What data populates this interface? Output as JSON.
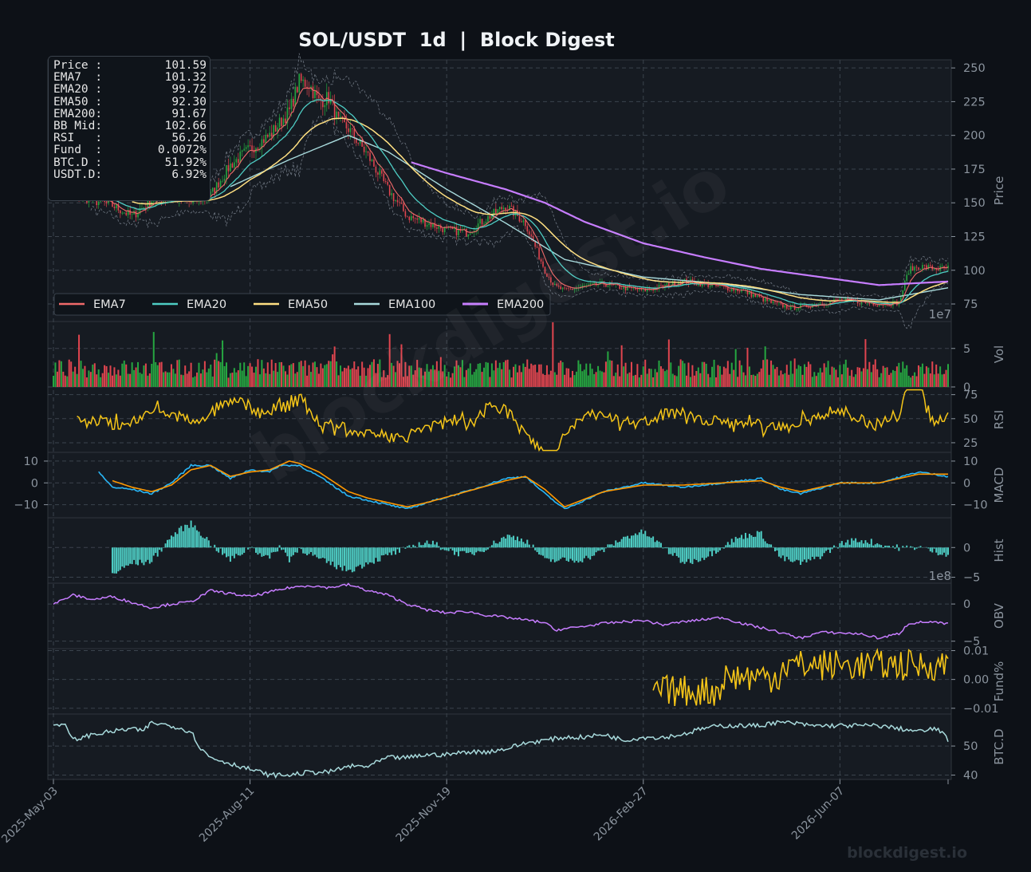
{
  "title": "SOL/USDT  1d  |  Block Digest",
  "footer": "blockdigest.io",
  "watermark": "blockdigest.io",
  "info_box": [
    {
      "label": "Price :",
      "value": "101.59"
    },
    {
      "label": "EMA7  :",
      "value": "101.32"
    },
    {
      "label": "EMA20 :",
      "value": "99.72"
    },
    {
      "label": "EMA50 :",
      "value": "92.30"
    },
    {
      "label": "EMA200:",
      "value": "91.67"
    },
    {
      "label": "BB Mid:",
      "value": "102.66"
    },
    {
      "label": "RSI   :",
      "value": "56.26"
    },
    {
      "label": "Fund  :",
      "value": "0.0072%"
    },
    {
      "label": "BTC.D :",
      "value": "51.92%"
    },
    {
      "label": "USDT.D:",
      "value": "6.92%"
    }
  ],
  "chart_data": {
    "type": "line",
    "x_ticks": [
      "2025-May-03",
      "2025-Aug-11",
      "2025-Nov-19",
      "2026-Feb-27",
      "2026-Jun-07"
    ],
    "n_days": 456,
    "colors": {
      "up": "#26a641",
      "down": "#e0454f",
      "ema7": "#f06a6a",
      "ema20": "#4ecdc4",
      "ema50": "#ffe082",
      "ema100": "#a8dadc",
      "ema200": "#c77dff",
      "rsi": "#f5c518",
      "macd": "#29b6f6",
      "signal": "#ff9800",
      "hist": "#4ecdc4",
      "obv": "#c77dff",
      "fund": "#f5c518",
      "btcd": "#a8dadc"
    },
    "panels": [
      {
        "name": "price",
        "ylabel": "Price",
        "ylim": [
          62,
          256
        ],
        "yticks": [
          "75",
          "100",
          "125",
          "150",
          "175",
          "200",
          "225",
          "250"
        ],
        "offset_label": "1e7",
        "legend": [
          "EMA7",
          "EMA20",
          "EMA50",
          "EMA100",
          "EMA200"
        ],
        "close_path": [
          [
            0,
            160
          ],
          [
            10,
            157
          ],
          [
            20,
            152
          ],
          [
            30,
            148
          ],
          [
            40,
            140
          ],
          [
            50,
            152
          ],
          [
            60,
            155
          ],
          [
            70,
            150
          ],
          [
            80,
            156
          ],
          [
            90,
            178
          ],
          [
            100,
            190
          ],
          [
            110,
            200
          ],
          [
            120,
            218
          ],
          [
            125,
            240
          ],
          [
            130,
            238
          ],
          [
            135,
            225
          ],
          [
            140,
            228
          ],
          [
            145,
            210
          ],
          [
            150,
            205
          ],
          [
            155,
            195
          ],
          [
            160,
            185
          ],
          [
            170,
            160
          ],
          [
            180,
            140
          ],
          [
            190,
            135
          ],
          [
            200,
            130
          ],
          [
            210,
            128
          ],
          [
            220,
            138
          ],
          [
            230,
            148
          ],
          [
            240,
            135
          ],
          [
            250,
            100
          ],
          [
            255,
            88
          ],
          [
            260,
            85
          ],
          [
            270,
            88
          ],
          [
            280,
            90
          ],
          [
            290,
            87
          ],
          [
            300,
            85
          ],
          [
            310,
            88
          ],
          [
            320,
            92
          ],
          [
            330,
            90
          ],
          [
            350,
            85
          ],
          [
            365,
            76
          ],
          [
            375,
            72
          ],
          [
            385,
            74
          ],
          [
            400,
            78
          ],
          [
            420,
            75
          ],
          [
            430,
            76
          ],
          [
            435,
            100
          ],
          [
            440,
            103
          ],
          [
            450,
            101
          ],
          [
            455,
            101.59
          ]
        ],
        "ema200_path": [
          [
            182,
            180
          ],
          [
            200,
            172
          ],
          [
            230,
            160
          ],
          [
            250,
            150
          ],
          [
            270,
            136
          ],
          [
            300,
            120
          ],
          [
            330,
            110
          ],
          [
            360,
            101
          ],
          [
            390,
            95
          ],
          [
            420,
            89
          ],
          [
            455,
            91.67
          ]
        ],
        "ema100_path": [
          [
            90,
            162
          ],
          [
            120,
            182
          ],
          [
            150,
            200
          ],
          [
            170,
            188
          ],
          [
            200,
            160
          ],
          [
            230,
            135
          ],
          [
            260,
            108
          ],
          [
            300,
            95
          ],
          [
            340,
            90
          ],
          [
            380,
            82
          ],
          [
            420,
            78
          ],
          [
            455,
            87
          ]
        ]
      },
      {
        "name": "volume",
        "ylabel": "Vol",
        "ylim": [
          0,
          8.5
        ],
        "yticks": [
          "0",
          "5"
        ]
      },
      {
        "name": "rsi",
        "ylabel": "RSI",
        "ylim": [
          15,
          83
        ],
        "yticks": [
          "25",
          "50",
          "75"
        ],
        "last": 56.26
      },
      {
        "name": "macd",
        "ylabel": "MACD",
        "ylim": [
          -16,
          14
        ],
        "yticks": [
          "−10",
          "0",
          "10"
        ],
        "left_ticks": [
          "10",
          "0",
          "−10"
        ],
        "macd_path": [
          [
            23,
            5
          ],
          [
            30,
            -2
          ],
          [
            40,
            -3
          ],
          [
            50,
            -5
          ],
          [
            60,
            0
          ],
          [
            70,
            8
          ],
          [
            80,
            8
          ],
          [
            90,
            2
          ],
          [
            100,
            6
          ],
          [
            110,
            5
          ],
          [
            115,
            8
          ],
          [
            125,
            8
          ],
          [
            135,
            3
          ],
          [
            150,
            -6
          ],
          [
            160,
            -8
          ],
          [
            180,
            -12
          ],
          [
            190,
            -9
          ],
          [
            210,
            -4
          ],
          [
            230,
            2
          ],
          [
            240,
            3
          ],
          [
            250,
            -5
          ],
          [
            260,
            -12
          ],
          [
            280,
            -4
          ],
          [
            300,
            0
          ],
          [
            320,
            -2
          ],
          [
            340,
            0
          ],
          [
            360,
            2
          ],
          [
            370,
            -3
          ],
          [
            380,
            -5
          ],
          [
            400,
            0
          ],
          [
            420,
            0
          ],
          [
            440,
            5
          ],
          [
            455,
            3
          ]
        ],
        "signal_path": [
          [
            30,
            1
          ],
          [
            40,
            -2
          ],
          [
            50,
            -4
          ],
          [
            60,
            -1
          ],
          [
            70,
            6
          ],
          [
            80,
            8
          ],
          [
            90,
            3
          ],
          [
            100,
            5
          ],
          [
            110,
            6
          ],
          [
            120,
            10
          ],
          [
            125,
            9
          ],
          [
            135,
            5
          ],
          [
            150,
            -4
          ],
          [
            160,
            -7
          ],
          [
            180,
            -11
          ],
          [
            190,
            -9
          ],
          [
            210,
            -4
          ],
          [
            230,
            1
          ],
          [
            240,
            3
          ],
          [
            250,
            -3
          ],
          [
            260,
            -11
          ],
          [
            280,
            -4
          ],
          [
            300,
            -1
          ],
          [
            320,
            -1
          ],
          [
            340,
            0
          ],
          [
            360,
            1
          ],
          [
            370,
            -2
          ],
          [
            380,
            -4
          ],
          [
            400,
            0
          ],
          [
            420,
            0
          ],
          [
            440,
            4
          ],
          [
            455,
            4
          ]
        ]
      },
      {
        "name": "hist",
        "ylabel": "Hist",
        "ylim": [
          -6,
          5
        ],
        "yticks": [
          "−5",
          "0"
        ],
        "offset_label": "1e8"
      },
      {
        "name": "obv",
        "ylabel": "OBV",
        "ylim": [
          -6,
          2.8
        ],
        "yticks": [
          "−5",
          "0"
        ],
        "obv_path": [
          [
            0,
            0
          ],
          [
            10,
            1.2
          ],
          [
            20,
            0.6
          ],
          [
            30,
            1.0
          ],
          [
            40,
            0.2
          ],
          [
            50,
            -0.5
          ],
          [
            60,
            0
          ],
          [
            70,
            0.3
          ],
          [
            80,
            1.8
          ],
          [
            90,
            1.4
          ],
          [
            100,
            1.0
          ],
          [
            110,
            1.6
          ],
          [
            120,
            2.2
          ],
          [
            130,
            2.5
          ],
          [
            140,
            2.2
          ],
          [
            150,
            2.6
          ],
          [
            160,
            1.8
          ],
          [
            170,
            1.2
          ],
          [
            180,
            0
          ],
          [
            190,
            -0.8
          ],
          [
            200,
            -1.2
          ],
          [
            210,
            -1.0
          ],
          [
            220,
            -1.5
          ],
          [
            230,
            -1.8
          ],
          [
            250,
            -2.5
          ],
          [
            255,
            -3.5
          ],
          [
            270,
            -3.0
          ],
          [
            280,
            -2.6
          ],
          [
            300,
            -2.2
          ],
          [
            310,
            -2.8
          ],
          [
            320,
            -2.4
          ],
          [
            340,
            -1.8
          ],
          [
            350,
            -2.6
          ],
          [
            365,
            -3.5
          ],
          [
            380,
            -4.6
          ],
          [
            390,
            -3.8
          ],
          [
            410,
            -4.0
          ],
          [
            420,
            -4.6
          ],
          [
            430,
            -4.0
          ],
          [
            435,
            -2.6
          ],
          [
            445,
            -2.4
          ],
          [
            455,
            -2.7
          ]
        ]
      },
      {
        "name": "fund",
        "ylabel": "Fund%",
        "ylim": [
          -0.012,
          0.0107
        ],
        "yticks": [
          "−0.01",
          "0.00",
          "0.01"
        ],
        "start_index": 305,
        "last": 0.0072
      },
      {
        "name": "btcd",
        "ylabel": "BTC.D",
        "ylim": [
          38.5,
          61
        ],
        "yticks": [
          "40",
          "50"
        ],
        "btcd_path": [
          [
            0,
            57
          ],
          [
            5,
            58
          ],
          [
            10,
            52
          ],
          [
            20,
            54
          ],
          [
            30,
            55
          ],
          [
            40,
            56
          ],
          [
            45,
            55
          ],
          [
            50,
            58
          ],
          [
            60,
            57
          ],
          [
            70,
            55
          ],
          [
            75,
            49
          ],
          [
            80,
            46
          ],
          [
            90,
            44
          ],
          [
            100,
            42
          ],
          [
            110,
            40
          ],
          [
            120,
            40
          ],
          [
            130,
            41
          ],
          [
            140,
            41
          ],
          [
            150,
            43
          ],
          [
            160,
            43
          ],
          [
            170,
            46
          ],
          [
            180,
            46
          ],
          [
            190,
            47
          ],
          [
            200,
            47
          ],
          [
            210,
            48
          ],
          [
            220,
            48
          ],
          [
            230,
            49
          ],
          [
            240,
            51
          ],
          [
            250,
            52
          ],
          [
            260,
            53
          ],
          [
            270,
            53
          ],
          [
            280,
            54
          ],
          [
            290,
            52
          ],
          [
            300,
            53
          ],
          [
            310,
            53
          ],
          [
            320,
            54
          ],
          [
            330,
            56
          ],
          [
            340,
            57
          ],
          [
            350,
            57
          ],
          [
            360,
            57
          ],
          [
            365,
            58
          ],
          [
            375,
            58
          ],
          [
            385,
            57
          ],
          [
            400,
            57
          ],
          [
            410,
            57
          ],
          [
            420,
            57
          ],
          [
            430,
            56
          ],
          [
            440,
            55
          ],
          [
            450,
            56
          ],
          [
            455,
            51.92
          ]
        ]
      }
    ]
  }
}
